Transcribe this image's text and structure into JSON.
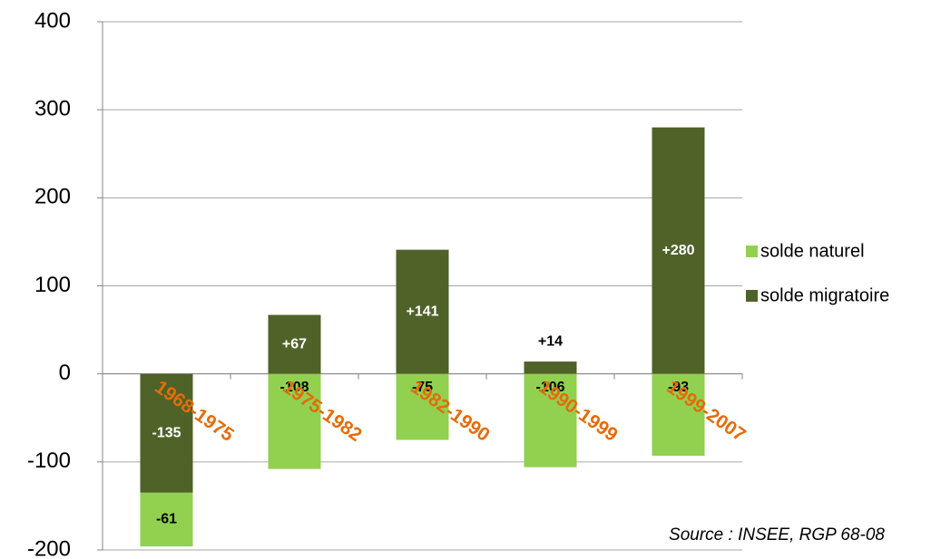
{
  "chart_data": {
    "type": "stacked_bar",
    "categories": [
      "1968-1975",
      "1975-1982",
      "1982-1990",
      "1990-1999",
      "1999-2007"
    ],
    "series": [
      {
        "name": "solde naturel",
        "color": "#92d050",
        "values": [
          -61,
          -108,
          -75,
          -106,
          -93
        ]
      },
      {
        "name": "solde migratoire",
        "color": "#4f6228",
        "values": [
          -135,
          67,
          141,
          14,
          280
        ],
        "value_labels": [
          "-135",
          "+67",
          "+141",
          "+14",
          "+280"
        ]
      }
    ],
    "ylim": [
      -200,
      400
    ],
    "yticks": [
      -200,
      -100,
      0,
      100,
      200,
      300,
      400
    ],
    "grid": true,
    "legend": "right",
    "annotation": "Source : INSEE, RGP 68-08"
  }
}
